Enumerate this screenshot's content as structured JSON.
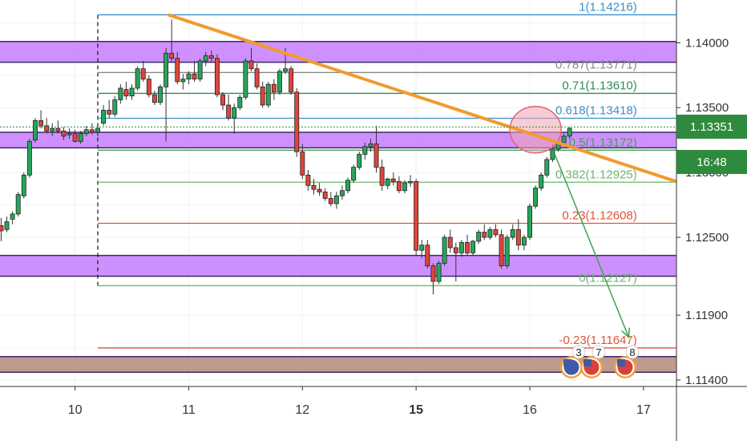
{
  "chart_data": {
    "type": "candlestick",
    "y_axis": {
      "range": [
        1.1135,
        1.1433
      ],
      "ticks": [
        {
          "value": 1.14,
          "label": "1.14000"
        },
        {
          "value": 1.135,
          "label": "1.13500"
        },
        {
          "value": 1.125,
          "label": "1.12500"
        },
        {
          "value": 1.119,
          "label": "1.11900"
        },
        {
          "value": 1.114,
          "label": "1.11400"
        }
      ],
      "hidden_tick": {
        "value": 1.13,
        "label": "1.13000"
      }
    },
    "x_axis": {
      "ticks": [
        {
          "t": 10,
          "label": "10",
          "bold": false
        },
        {
          "t": 11,
          "label": "11",
          "bold": false
        },
        {
          "t": 12,
          "label": "12",
          "bold": false
        },
        {
          "t": 13,
          "label": "15",
          "bold": true
        },
        {
          "t": 14,
          "label": "16",
          "bold": false
        },
        {
          "t": 15,
          "label": "17",
          "bold": false
        }
      ],
      "range": [
        9.34,
        15.29
      ]
    },
    "current_price": {
      "value": 1.13351,
      "label": "1.13351",
      "color": "#2e8b3d"
    },
    "countdown": {
      "label": "16:48",
      "color": "#2e8b3d"
    },
    "zones": [
      {
        "from": 1.1385,
        "to": 1.1401,
        "color": "#c77dff"
      },
      {
        "from": 1.1319,
        "to": 1.1331,
        "color": "#c77dff"
      },
      {
        "from": 1.122,
        "to": 1.1236,
        "color": "#c77dff"
      },
      {
        "from": 1.1146,
        "to": 1.1158,
        "color": "#b48a7a"
      }
    ],
    "fibonacci": {
      "t_start": 10.2,
      "t_label_end": 14.52,
      "levels": [
        {
          "label": "1(1.14216)",
          "value": 1.14216,
          "color": "#3d8fc9"
        },
        {
          "label": "0.787(1.13771)",
          "value": 1.13771,
          "color": "#888888"
        },
        {
          "label": "0.71(1.13610)",
          "value": 1.1361,
          "color": "#2e8b57"
        },
        {
          "label": "0.618(1.13418)",
          "value": 1.13418,
          "color": "#3d8fc9"
        },
        {
          "label": "0.5(1.13172)",
          "value": 1.13172,
          "color": "#3fa34d"
        },
        {
          "label": "0.382(1.12925)",
          "value": 1.12925,
          "color": "#6ab86f"
        },
        {
          "label": "0.23(1.12608)",
          "value": 1.12608,
          "color": "#e0533a"
        },
        {
          "label": "0(1.12127)",
          "value": 1.12127,
          "color": "#6ab86f"
        },
        {
          "label": "-0.23(1.11647)",
          "value": 1.11647,
          "color": "#e0533a"
        }
      ]
    },
    "trendline": {
      "from": [
        10.82,
        1.14216
      ],
      "to": [
        15.29,
        1.1293
      ],
      "color": "#f29a2e"
    },
    "projection": {
      "from": [
        14.22,
        1.1314
      ],
      "to": [
        14.87,
        1.1173
      ],
      "color": "#3fa34d"
    },
    "highlight": {
      "center": [
        14.05,
        1.1333
      ],
      "color": "#f2a3b0"
    },
    "events": [
      "3",
      "7",
      "8"
    ],
    "candles": [
      [
        9.35,
        1.1259,
        1.1265,
        1.1247,
        1.1255
      ],
      [
        9.4,
        1.1256,
        1.1266,
        1.1254,
        1.1262
      ],
      [
        9.45,
        1.1264,
        1.127,
        1.126,
        1.1268
      ],
      [
        9.5,
        1.1268,
        1.1285,
        1.1266,
        1.1283
      ],
      [
        9.55,
        1.1282,
        1.13,
        1.128,
        1.1298
      ],
      [
        9.6,
        1.1298,
        1.1326,
        1.1296,
        1.1324
      ],
      [
        9.65,
        1.1325,
        1.1342,
        1.1323,
        1.134
      ],
      [
        9.7,
        1.134,
        1.1348,
        1.1334,
        1.1336
      ],
      [
        9.75,
        1.1336,
        1.1342,
        1.133,
        1.1332
      ],
      [
        9.8,
        1.1332,
        1.1338,
        1.1328,
        1.1334
      ],
      [
        9.85,
        1.1334,
        1.134,
        1.133,
        1.1332
      ],
      [
        9.9,
        1.1332,
        1.1335,
        1.1325,
        1.1328
      ],
      [
        9.95,
        1.1329,
        1.1334,
        1.1326,
        1.133
      ],
      [
        10.0,
        1.133,
        1.1333,
        1.1323,
        1.1324
      ],
      [
        10.05,
        1.1324,
        1.1332,
        1.1322,
        1.133
      ],
      [
        10.1,
        1.133,
        1.1336,
        1.1328,
        1.1333
      ],
      [
        10.15,
        1.1333,
        1.1338,
        1.1329,
        1.1331
      ],
      [
        10.2,
        1.1331,
        1.1336,
        1.1328,
        1.1334
      ],
      [
        10.25,
        1.1338,
        1.1352,
        1.1336,
        1.1348
      ],
      [
        10.3,
        1.1348,
        1.1356,
        1.1342,
        1.1345
      ],
      [
        10.35,
        1.1345,
        1.1359,
        1.1343,
        1.1356
      ],
      [
        10.4,
        1.1356,
        1.1368,
        1.1353,
        1.1365
      ],
      [
        10.45,
        1.1364,
        1.137,
        1.1356,
        1.1359
      ],
      [
        10.5,
        1.1359,
        1.1368,
        1.1356,
        1.1365
      ],
      [
        10.55,
        1.1365,
        1.1382,
        1.1363,
        1.138
      ],
      [
        10.6,
        1.138,
        1.1386,
        1.137,
        1.1372
      ],
      [
        10.65,
        1.1372,
        1.1375,
        1.1358,
        1.136
      ],
      [
        10.7,
        1.136,
        1.1363,
        1.1352,
        1.1354
      ],
      [
        10.75,
        1.1354,
        1.1368,
        1.1352,
        1.1366
      ],
      [
        10.8,
        1.1366,
        1.1396,
        1.1324,
        1.1392
      ],
      [
        10.85,
        1.1392,
        1.1418,
        1.1385,
        1.1388
      ],
      [
        10.9,
        1.1388,
        1.1393,
        1.1368,
        1.137
      ],
      [
        10.95,
        1.137,
        1.1376,
        1.1364,
        1.1372
      ],
      [
        11.0,
        1.1372,
        1.1378,
        1.1368,
        1.1376
      ],
      [
        11.05,
        1.1376,
        1.1386,
        1.137,
        1.1372
      ],
      [
        11.1,
        1.1372,
        1.1388,
        1.137,
        1.1386
      ],
      [
        11.15,
        1.1386,
        1.1393,
        1.1382,
        1.139
      ],
      [
        11.2,
        1.139,
        1.1394,
        1.1385,
        1.1388
      ],
      [
        11.25,
        1.1388,
        1.1391,
        1.1358,
        1.136
      ],
      [
        11.3,
        1.136,
        1.1362,
        1.1348,
        1.1352
      ],
      [
        11.35,
        1.1352,
        1.136,
        1.134,
        1.1342
      ],
      [
        11.4,
        1.1342,
        1.1353,
        1.133,
        1.135
      ],
      [
        11.45,
        1.135,
        1.136,
        1.1348,
        1.1358
      ],
      [
        11.5,
        1.1358,
        1.1388,
        1.1356,
        1.1386
      ],
      [
        11.55,
        1.1386,
        1.1396,
        1.1378,
        1.138
      ],
      [
        11.6,
        1.138,
        1.1384,
        1.1364,
        1.1366
      ],
      [
        11.65,
        1.1366,
        1.137,
        1.135,
        1.1352
      ],
      [
        11.7,
        1.1352,
        1.137,
        1.135,
        1.1368
      ],
      [
        11.75,
        1.1368,
        1.1372,
        1.1356,
        1.1362
      ],
      [
        11.8,
        1.1362,
        1.138,
        1.136,
        1.1378
      ],
      [
        11.85,
        1.1378,
        1.1396,
        1.1376,
        1.138
      ],
      [
        11.9,
        1.138,
        1.1382,
        1.136,
        1.1362
      ],
      [
        11.95,
        1.1362,
        1.1365,
        1.1312,
        1.1316
      ],
      [
        12.0,
        1.1316,
        1.1322,
        1.1295,
        1.1298
      ],
      [
        12.05,
        1.1298,
        1.1302,
        1.1286,
        1.129
      ],
      [
        12.1,
        1.129,
        1.1295,
        1.1283,
        1.1287
      ],
      [
        12.15,
        1.1287,
        1.1292,
        1.1282,
        1.1285
      ],
      [
        12.2,
        1.1285,
        1.1288,
        1.1278,
        1.128
      ],
      [
        12.25,
        1.128,
        1.1285,
        1.1274,
        1.1276
      ],
      [
        12.3,
        1.1276,
        1.1285,
        1.1272,
        1.1282
      ],
      [
        12.35,
        1.1282,
        1.129,
        1.1279,
        1.1286
      ],
      [
        12.4,
        1.1286,
        1.1296,
        1.1284,
        1.1294
      ],
      [
        12.45,
        1.1294,
        1.1306,
        1.1292,
        1.1304
      ],
      [
        12.5,
        1.1304,
        1.1316,
        1.1302,
        1.1314
      ],
      [
        12.55,
        1.1314,
        1.1323,
        1.131,
        1.132
      ],
      [
        12.6,
        1.132,
        1.1326,
        1.1316,
        1.1322
      ],
      [
        12.65,
        1.1322,
        1.1336,
        1.13,
        1.1304
      ],
      [
        12.7,
        1.1304,
        1.131,
        1.1286,
        1.129
      ],
      [
        12.75,
        1.129,
        1.1296,
        1.1287,
        1.1295
      ],
      [
        12.8,
        1.1295,
        1.13,
        1.129,
        1.1293
      ],
      [
        12.85,
        1.1293,
        1.1297,
        1.1284,
        1.1286
      ],
      [
        12.9,
        1.1286,
        1.1294,
        1.1284,
        1.1292
      ],
      [
        12.95,
        1.1292,
        1.1298,
        1.1289,
        1.1293
      ],
      [
        13.0,
        1.1293,
        1.1295,
        1.1236,
        1.124
      ],
      [
        13.05,
        1.124,
        1.1248,
        1.1234,
        1.1244
      ],
      [
        13.1,
        1.1244,
        1.1248,
        1.1226,
        1.1228
      ],
      [
        13.15,
        1.1228,
        1.123,
        1.1206,
        1.1216
      ],
      [
        13.2,
        1.1216,
        1.1232,
        1.1214,
        1.123
      ],
      [
        13.25,
        1.123,
        1.1252,
        1.1228,
        1.125
      ],
      [
        13.3,
        1.125,
        1.1256,
        1.1238,
        1.1242
      ],
      [
        13.35,
        1.1242,
        1.1246,
        1.1216,
        1.1238
      ],
      [
        13.4,
        1.1238,
        1.1248,
        1.1235,
        1.1246
      ],
      [
        13.45,
        1.1246,
        1.1252,
        1.1236,
        1.1238
      ],
      [
        13.5,
        1.1238,
        1.1248,
        1.1236,
        1.1247
      ],
      [
        13.55,
        1.1247,
        1.1256,
        1.1245,
        1.1254
      ],
      [
        13.6,
        1.1254,
        1.126,
        1.1248,
        1.125
      ],
      [
        13.65,
        1.125,
        1.1258,
        1.1248,
        1.1256
      ],
      [
        13.7,
        1.1256,
        1.126,
        1.125,
        1.1252
      ],
      [
        13.75,
        1.1252,
        1.1256,
        1.1226,
        1.1228
      ],
      [
        13.8,
        1.1228,
        1.1252,
        1.1226,
        1.125
      ],
      [
        13.85,
        1.125,
        1.126,
        1.1248,
        1.1256
      ],
      [
        13.9,
        1.1256,
        1.1264,
        1.124,
        1.1244
      ],
      [
        13.95,
        1.1244,
        1.1252,
        1.124,
        1.125
      ],
      [
        14.0,
        1.125,
        1.1276,
        1.1248,
        1.1274
      ],
      [
        14.05,
        1.1274,
        1.129,
        1.1272,
        1.1288
      ],
      [
        14.1,
        1.1288,
        1.13,
        1.1286,
        1.1298
      ],
      [
        14.15,
        1.1298,
        1.1312,
        1.1296,
        1.131
      ],
      [
        14.2,
        1.131,
        1.1322,
        1.1308,
        1.1318
      ],
      [
        14.25,
        1.1318,
        1.1326,
        1.1316,
        1.1323
      ],
      [
        14.3,
        1.1323,
        1.133,
        1.1321,
        1.1328
      ],
      [
        14.35,
        1.1328,
        1.1335,
        1.1326,
        1.1334
      ]
    ]
  }
}
